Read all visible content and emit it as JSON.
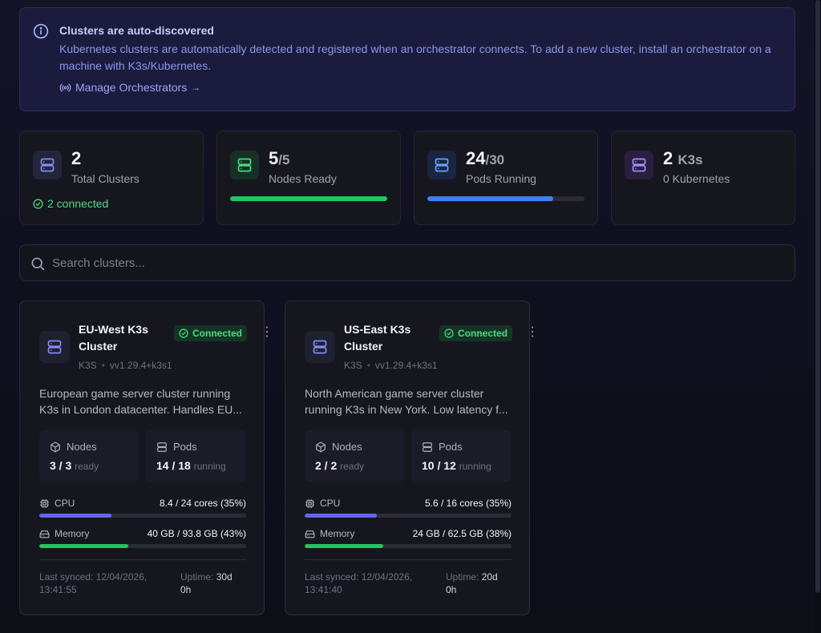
{
  "banner": {
    "title": "Clusters are auto-discovered",
    "text": "Kubernetes clusters are automatically detected and registered when an orchestrator connects. To add a new cluster, install an orchestrator on a machine with K3s/Kubernetes.",
    "link_label": "Manage Orchestrators",
    "link_arrow": "→"
  },
  "stats": [
    {
      "value": "2",
      "sub": "",
      "label": "Total Clusters",
      "extra": "2 connected",
      "icon_bg": "#23253a",
      "icon_color": "#818cf8"
    },
    {
      "value": "5",
      "sub": "/5",
      "label": "Nodes Ready",
      "progress": 1.0,
      "bar_color": "#22c55e",
      "icon_bg": "#163026",
      "icon_color": "#4ade80"
    },
    {
      "value": "24",
      "sub": "/30",
      "label": "Pods Running",
      "progress": 0.8,
      "bar_color": "#3b82f6",
      "icon_bg": "#1a2540",
      "icon_color": "#60a5fa"
    },
    {
      "value": "2",
      "sub": "K3s",
      "label": "0 Kubernetes",
      "icon_bg": "#2a1f40",
      "icon_color": "#a78bfa"
    }
  ],
  "search": {
    "placeholder": "Search clusters..."
  },
  "clusters": [
    {
      "name": "EU-West K3s Cluster",
      "status": "Connected",
      "type": "K3S",
      "version": "vv1.29.4+k3s1",
      "description": "European game server cluster running K3s in London datacenter. Handles EU...",
      "nodes_label": "Nodes",
      "nodes_value": "3 / 3",
      "nodes_unit": "ready",
      "pods_label": "Pods",
      "pods_value": "14 / 18",
      "pods_unit": "running",
      "cpu_label": "CPU",
      "cpu_value": "8.4 / 24 cores (35%)",
      "cpu_pct": 0.35,
      "mem_label": "Memory",
      "mem_value": "40 GB / 93.8 GB (43%)",
      "mem_pct": 0.43,
      "last_synced": "Last synced: 12/04/2026, 13:41:55",
      "uptime_label": "Uptime:",
      "uptime_value": "30d 0h"
    },
    {
      "name": "US-East K3s Cluster",
      "status": "Connected",
      "type": "K3S",
      "version": "vv1.29.4+k3s1",
      "description": "North American game server cluster running K3s in New York. Low latency f...",
      "nodes_label": "Nodes",
      "nodes_value": "2 / 2",
      "nodes_unit": "ready",
      "pods_label": "Pods",
      "pods_value": "10 / 12",
      "pods_unit": "running",
      "cpu_label": "CPU",
      "cpu_value": "5.6 / 16 cores (35%)",
      "cpu_pct": 0.35,
      "mem_label": "Memory",
      "mem_value": "24 GB / 62.5 GB (38%)",
      "mem_pct": 0.38,
      "last_synced": "Last synced: 12/04/2026, 13:41:40",
      "uptime_label": "Uptime:",
      "uptime_value": "20d 0h"
    }
  ],
  "colors": {
    "cpu_bar": "#6366f1",
    "mem_bar": "#22c55e",
    "connected": "#4ade80",
    "banner_link": "#9ca3f5"
  },
  "icons": [
    "info-icon",
    "broadcast-icon",
    "server-icon",
    "check-circle-icon",
    "search-icon",
    "cube-icon",
    "chip-icon",
    "hard-drive-icon",
    "more-vertical-icon"
  ]
}
